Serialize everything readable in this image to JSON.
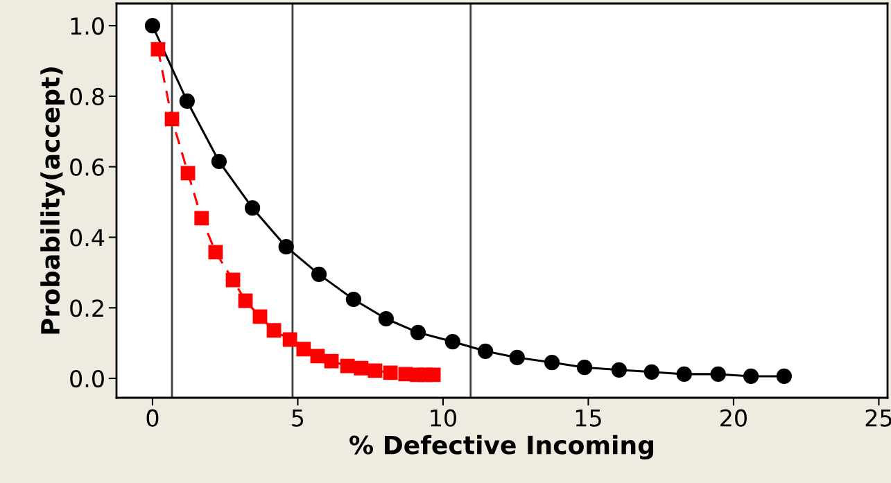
{
  "chart_data": {
    "type": "line",
    "xlabel": "% Defective Incoming",
    "ylabel": "Probability(accept)",
    "xlim": [
      -1.24,
      25.3
    ],
    "ylim": [
      -0.055,
      1.063
    ],
    "xticks": [
      0,
      5,
      10,
      15,
      20,
      25
    ],
    "yticks": [
      {
        "value": 0,
        "label": "0.0"
      },
      {
        "value": 0.2,
        "label": "0.2"
      },
      {
        "value": 0.4,
        "label": "0.4"
      },
      {
        "value": 0.6,
        "label": "0.6"
      },
      {
        "value": 0.8,
        "label": "0.8"
      },
      {
        "value": 1,
        "label": "1.0"
      }
    ],
    "grid": false,
    "legend": false,
    "series": [
      {
        "color": "#000000",
        "marker": "circle",
        "line_style": "solid",
        "x": [
          0,
          1.19,
          2.29,
          3.44,
          4.6,
          5.73,
          6.92,
          8.04,
          9.14,
          10.33,
          11.46,
          12.55,
          13.75,
          14.87,
          16.06,
          17.18,
          18.3,
          19.47,
          20.6,
          21.74
        ],
        "values": [
          1.0,
          0.786,
          0.615,
          0.483,
          0.373,
          0.295,
          0.224,
          0.169,
          0.13,
          0.104,
          0.077,
          0.059,
          0.045,
          0.031,
          0.024,
          0.018,
          0.012,
          0.012,
          0.006,
          0.006
        ]
      },
      {
        "color": "#ff0000",
        "marker": "square",
        "line_style": "dashed",
        "x": [
          0.19,
          0.67,
          1.22,
          1.69,
          2.17,
          2.77,
          3.2,
          3.7,
          4.18,
          4.73,
          5.2,
          5.68,
          6.16,
          6.71,
          7.18,
          7.66,
          8.19,
          8.71,
          9.1,
          9.38,
          9.67
        ],
        "values": [
          0.933,
          0.735,
          0.582,
          0.454,
          0.358,
          0.279,
          0.22,
          0.175,
          0.136,
          0.11,
          0.083,
          0.063,
          0.049,
          0.035,
          0.029,
          0.022,
          0.016,
          0.012,
          0.01,
          0.01,
          0.01
        ]
      }
    ],
    "ref_lines": [
      {
        "axis": "x",
        "value": 0.67,
        "color": "#404040"
      },
      {
        "axis": "x",
        "value": 4.82,
        "color": "#404040"
      },
      {
        "axis": "x",
        "value": 10.95,
        "color": "#404040"
      }
    ]
  }
}
